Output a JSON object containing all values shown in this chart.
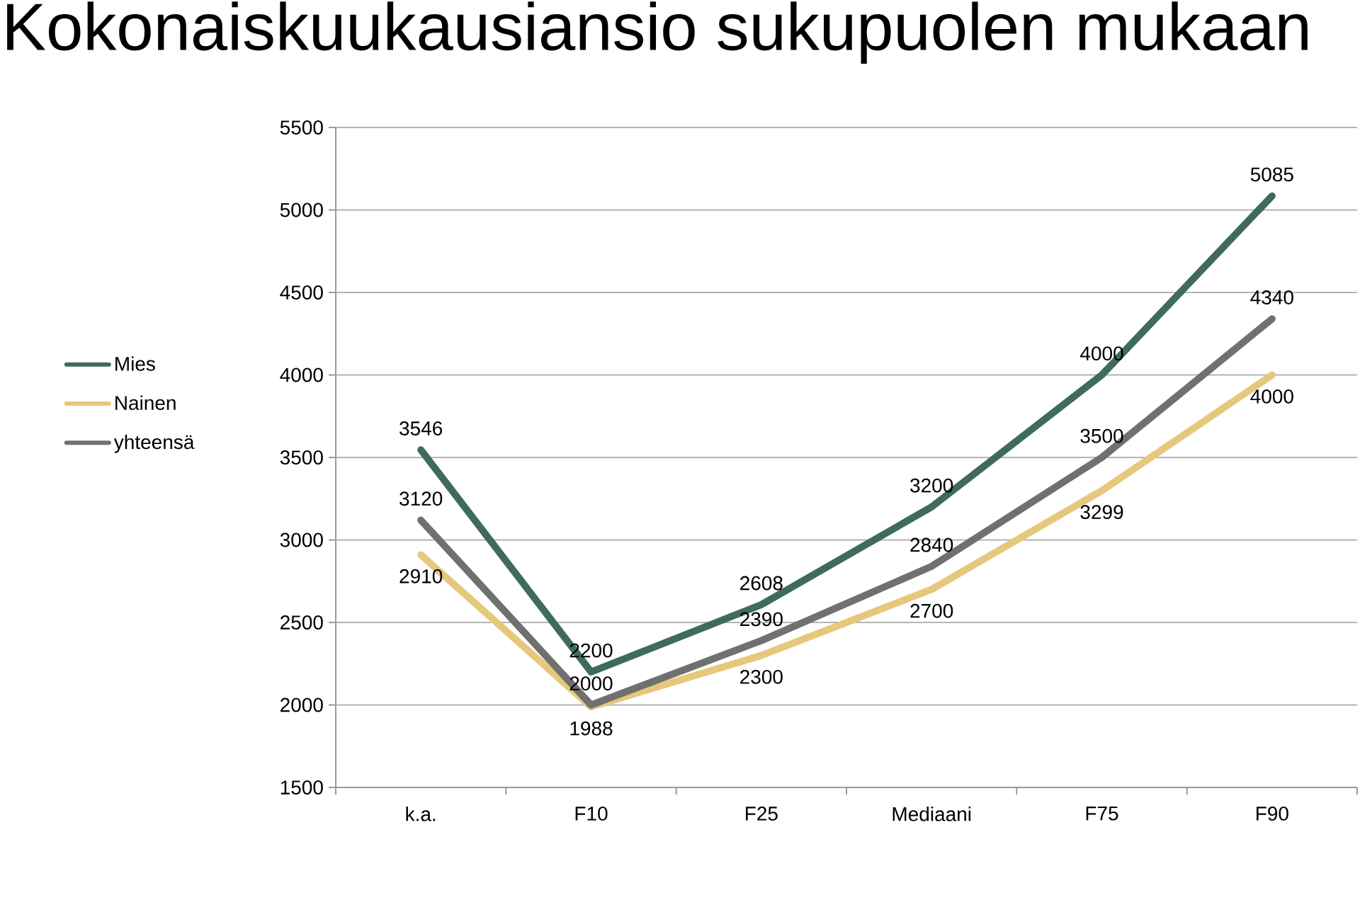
{
  "chart_data": {
    "type": "line",
    "title": "Kokonaiskuukausiansio sukupuolen mukaan",
    "categories": [
      "k.a.",
      "F10",
      "F25",
      "Mediaani",
      "F75",
      "F90"
    ],
    "series": [
      {
        "name": "Mies",
        "color": "#3f6a5f",
        "values": [
          3546,
          2200,
          2608,
          3200,
          4000,
          5085
        ]
      },
      {
        "name": "Nainen",
        "color": "#e6c87c",
        "values": [
          2910,
          1988,
          2300,
          2700,
          3299,
          4000
        ]
      },
      {
        "name": "yhteensä",
        "color": "#707070",
        "values": [
          3120,
          2000,
          2390,
          2840,
          3500,
          4340
        ]
      }
    ],
    "ylim": [
      1500,
      5500
    ],
    "yticks": [
      1500,
      2000,
      2500,
      3000,
      3500,
      4000,
      4500,
      5000,
      5500
    ],
    "grid": "y",
    "legend": "left",
    "data_labels": true,
    "line_style": "solid"
  }
}
